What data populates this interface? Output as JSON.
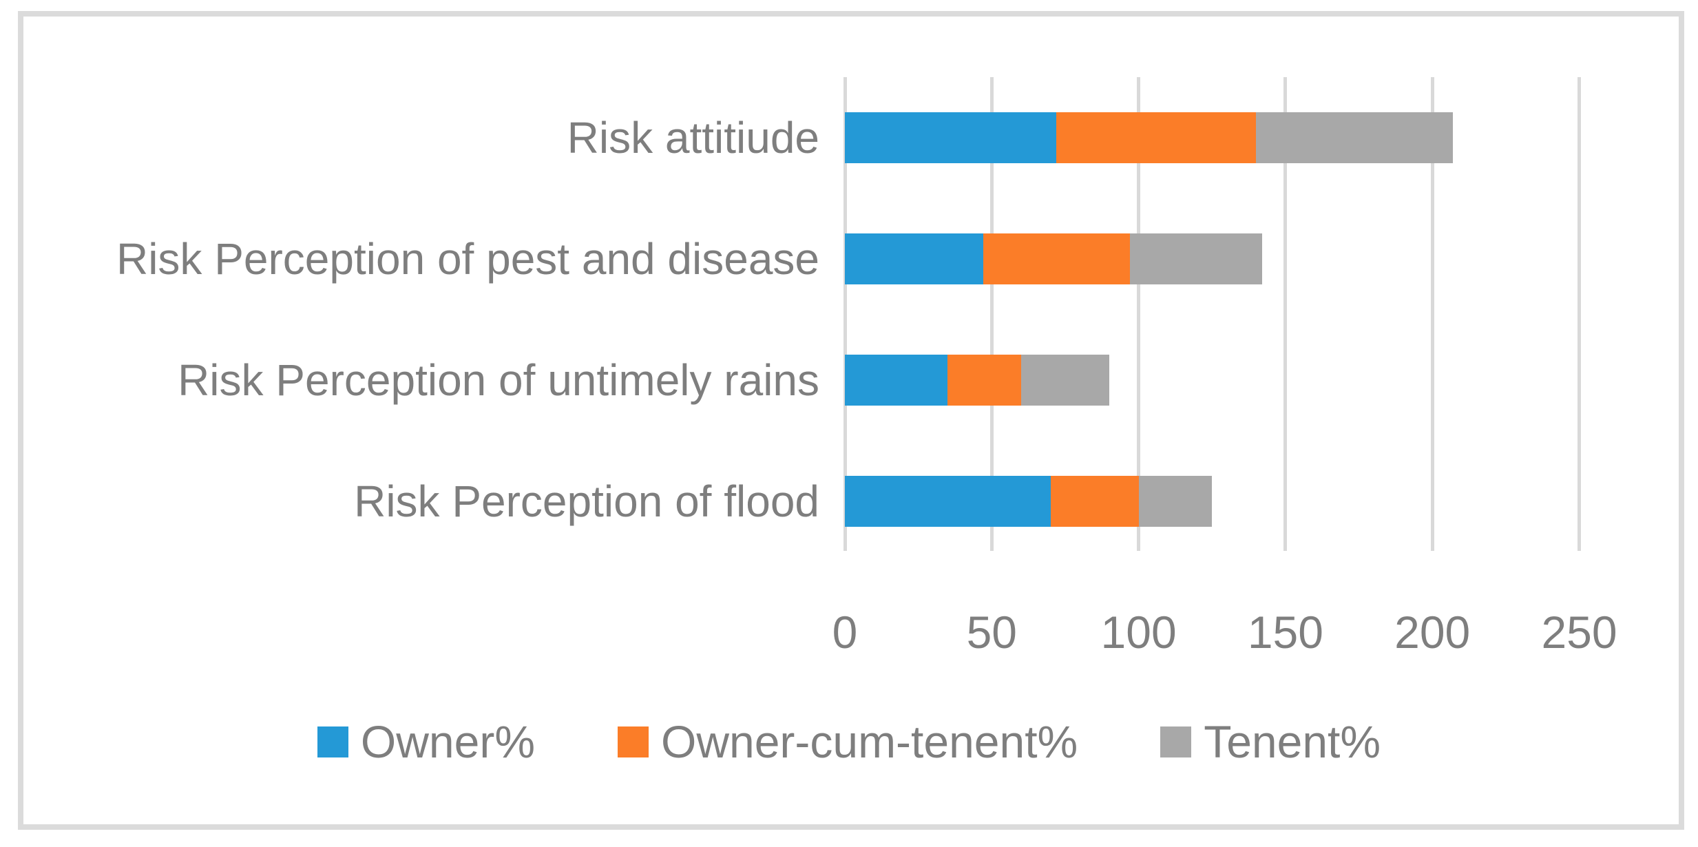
{
  "chart_data": {
    "type": "bar",
    "orientation": "horizontal",
    "stacked": true,
    "title": "",
    "xlabel": "",
    "ylabel": "",
    "categories": [
      "Risk attitiude",
      "Risk Perception of pest and disease",
      "Risk Perception of untimely rains",
      "Risk Perception of flood"
    ],
    "series": [
      {
        "name": "Owner%",
        "color": "#2499d6",
        "values": [
          72,
          47,
          35,
          70
        ]
      },
      {
        "name": "Owner-cum-tenent%",
        "color": "#fb7d28",
        "values": [
          68,
          50,
          25,
          30
        ]
      },
      {
        "name": "Tenent%",
        "color": "#a8a8a8",
        "values": [
          67,
          45,
          30,
          25
        ]
      }
    ],
    "totals": [
      207,
      142,
      90,
      125
    ],
    "xlim": [
      0,
      250
    ],
    "xticks": [
      0,
      50,
      100,
      150,
      200,
      250
    ],
    "grid": "vertical",
    "legend_position": "bottom"
  },
  "colors": {
    "text": "#7e7e7e",
    "gridline": "#d9d9d9",
    "frame_border": "#dbdbdb",
    "background": "#ffffff"
  }
}
